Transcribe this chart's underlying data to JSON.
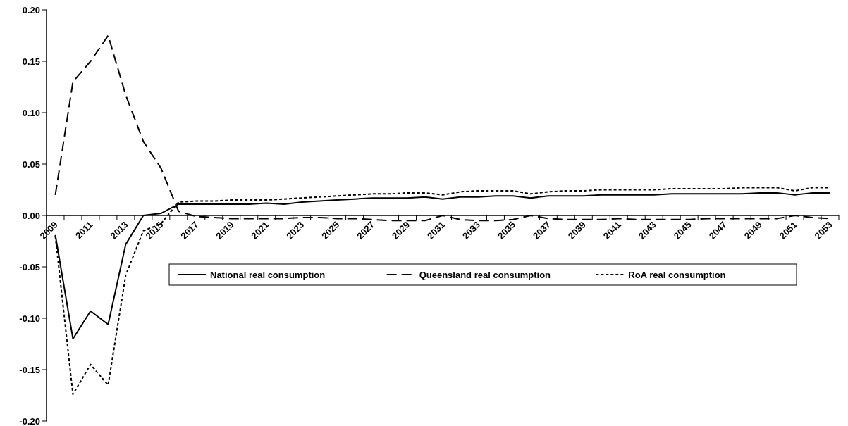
{
  "chart_data": {
    "type": "line",
    "categories": [
      "2009",
      null,
      "2011",
      null,
      "2013",
      null,
      "2015",
      null,
      "2017",
      null,
      "2019",
      null,
      "2021",
      null,
      "2023",
      null,
      "2025",
      null,
      "2027",
      null,
      "2029",
      null,
      "2031",
      null,
      "2033",
      null,
      "2035",
      null,
      "2037",
      null,
      "2039",
      null,
      "2041",
      null,
      "2043",
      null,
      "2045",
      null,
      "2047",
      null,
      "2049",
      null,
      "2051",
      null,
      "2053"
    ],
    "series": [
      {
        "name": "National real consumption",
        "color": "#000000",
        "line_style": "solid",
        "values": [
          -0.019,
          -0.12,
          -0.093,
          -0.106,
          -0.028,
          0.0,
          0.002,
          0.011,
          0.011,
          0.011,
          0.011,
          0.011,
          0.012,
          0.011,
          0.013,
          0.014,
          0.015,
          0.016,
          0.017,
          0.017,
          0.017,
          0.018,
          0.016,
          0.018,
          0.018,
          0.019,
          0.019,
          0.017,
          0.019,
          0.019,
          0.019,
          0.02,
          0.02,
          0.02,
          0.02,
          0.021,
          0.021,
          0.021,
          0.021,
          0.021,
          0.022,
          0.022,
          0.02,
          0.022,
          0.022
        ]
      },
      {
        "name": "Queensland real consumption",
        "color": "#000000",
        "line_style": "dashed",
        "values": [
          0.02,
          0.13,
          0.15,
          0.175,
          0.117,
          0.072,
          0.046,
          0.004,
          -0.001,
          -0.002,
          -0.003,
          -0.003,
          -0.003,
          -0.003,
          -0.002,
          -0.002,
          -0.003,
          -0.003,
          -0.004,
          -0.005,
          -0.005,
          -0.005,
          0.0,
          -0.004,
          -0.005,
          -0.005,
          -0.004,
          0.0,
          -0.003,
          -0.004,
          -0.004,
          -0.004,
          -0.003,
          -0.004,
          -0.004,
          -0.004,
          -0.004,
          -0.003,
          -0.003,
          -0.003,
          -0.003,
          -0.003,
          0.0,
          -0.002,
          -0.003
        ]
      },
      {
        "name": "RoA real consumption",
        "color": "#000000",
        "line_style": "dotted",
        "values": [
          -0.02,
          -0.174,
          -0.145,
          -0.165,
          -0.058,
          -0.015,
          -0.008,
          0.013,
          0.014,
          0.014,
          0.015,
          0.015,
          0.015,
          0.016,
          0.017,
          0.018,
          0.019,
          0.02,
          0.021,
          0.021,
          0.022,
          0.022,
          0.02,
          0.023,
          0.024,
          0.024,
          0.024,
          0.021,
          0.023,
          0.024,
          0.024,
          0.025,
          0.025,
          0.025,
          0.025,
          0.026,
          0.026,
          0.026,
          0.026,
          0.027,
          0.027,
          0.027,
          0.024,
          0.027,
          0.027
        ]
      }
    ],
    "ylim": [
      -0.2,
      0.2
    ],
    "yticks": [
      {
        "value": -0.2,
        "label": "-0.20"
      },
      {
        "value": -0.15,
        "label": "-0.15"
      },
      {
        "value": -0.1,
        "label": "-0.10"
      },
      {
        "value": -0.05,
        "label": "-0.05"
      },
      {
        "value": 0,
        "label": "0.00"
      },
      {
        "value": 0.05,
        "label": "0.05"
      },
      {
        "value": 0.1,
        "label": "0.10"
      },
      {
        "value": 0.15,
        "label": "0.15"
      },
      {
        "value": 0.2,
        "label": "0.20"
      }
    ],
    "grid": false,
    "legend": "bottom",
    "marker": "none"
  }
}
